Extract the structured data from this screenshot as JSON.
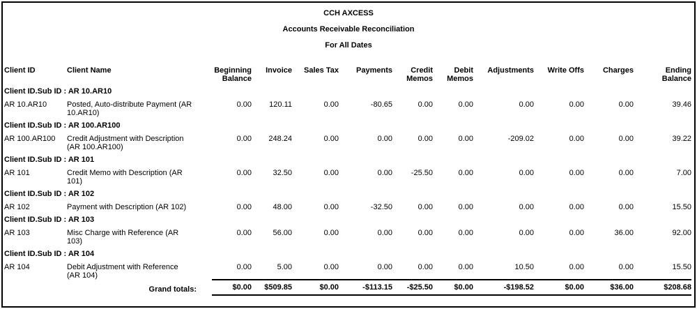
{
  "report": {
    "title": "CCH AXCESS",
    "subtitle": "Accounts Receivable Reconciliation",
    "date_range": "For All Dates",
    "colors": {
      "text": "#000000",
      "background": "#ffffff",
      "border": "#000000"
    },
    "columns": [
      "Client ID",
      "Client Name",
      "Beginning\nBalance",
      "Invoice",
      "Sales Tax",
      "Payments",
      "Credit\nMemos",
      "Debit\nMemos",
      "Adjustments",
      "Write Offs",
      "Charges",
      "Ending\nBalance"
    ],
    "groups": [
      {
        "group_label": "Client ID.Sub ID : AR 10.AR10",
        "rows": [
          {
            "client_id": "AR 10.AR10",
            "client_name": "Posted, Auto-distribute Payment (AR\n10.AR10)",
            "values": [
              "0.00",
              "120.11",
              "0.00",
              "-80.65",
              "0.00",
              "0.00",
              "0.00",
              "0.00",
              "0.00",
              "39.46"
            ]
          }
        ]
      },
      {
        "group_label": "Client ID.Sub ID : AR 100.AR100",
        "rows": [
          {
            "client_id": "AR 100.AR100",
            "client_name": "Credit Adjustment with Description\n(AR 100.AR100)",
            "values": [
              "0.00",
              "248.24",
              "0.00",
              "0.00",
              "0.00",
              "0.00",
              "-209.02",
              "0.00",
              "0.00",
              "39.22"
            ]
          }
        ]
      },
      {
        "group_label": "Client ID.Sub ID : AR 101",
        "rows": [
          {
            "client_id": "AR 101",
            "client_name": "Credit Memo with Description (AR\n101)",
            "values": [
              "0.00",
              "32.50",
              "0.00",
              "0.00",
              "-25.50",
              "0.00",
              "0.00",
              "0.00",
              "0.00",
              "7.00"
            ]
          }
        ]
      },
      {
        "group_label": "Client ID.Sub ID : AR 102",
        "rows": [
          {
            "client_id": "AR 102",
            "client_name": "Payment with Description (AR 102)",
            "values": [
              "0.00",
              "48.00",
              "0.00",
              "-32.50",
              "0.00",
              "0.00",
              "0.00",
              "0.00",
              "0.00",
              "15.50"
            ]
          }
        ]
      },
      {
        "group_label": "Client ID.Sub ID : AR 103",
        "rows": [
          {
            "client_id": "AR 103",
            "client_name": "Misc Charge with Reference (AR\n103)",
            "values": [
              "0.00",
              "56.00",
              "0.00",
              "0.00",
              "0.00",
              "0.00",
              "0.00",
              "0.00",
              "36.00",
              "92.00"
            ]
          }
        ]
      },
      {
        "group_label": "Client ID.Sub ID : AR 104",
        "rows": [
          {
            "client_id": "AR 104",
            "client_name": "Debit Adjustment with Reference\n(AR 104)",
            "values": [
              "0.00",
              "5.00",
              "0.00",
              "0.00",
              "0.00",
              "0.00",
              "10.50",
              "0.00",
              "0.00",
              "15.50"
            ]
          }
        ]
      }
    ],
    "grand_totals": {
      "label": "Grand totals:",
      "values": [
        "$0.00",
        "$509.85",
        "$0.00",
        "-$113.15",
        "-$25.50",
        "$0.00",
        "-$198.52",
        "$0.00",
        "$36.00",
        "$208.68"
      ]
    }
  }
}
